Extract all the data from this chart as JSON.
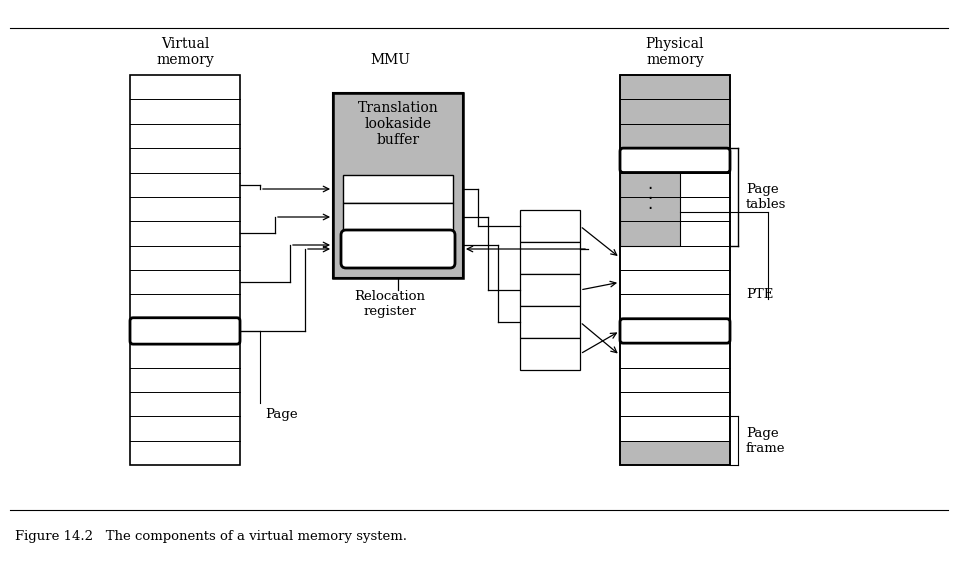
{
  "title": "Figure 14.2   The components of a virtual memory system.",
  "bg_color": "#ffffff",
  "line_color": "#000000",
  "gray_color": "#b8b8b8",
  "vm_label": "Virtual\nmemory",
  "mmu_label": "MMU",
  "pm_label": "Physical\nmemory",
  "tlb_label": "Translation\nlookaside\nbuffer",
  "rr_label": "Relocation\nregister",
  "page_label": "Page",
  "page_tables_label": "Page\ntables",
  "pte_label": "PTE",
  "page_frame_label": "Page\nframe"
}
